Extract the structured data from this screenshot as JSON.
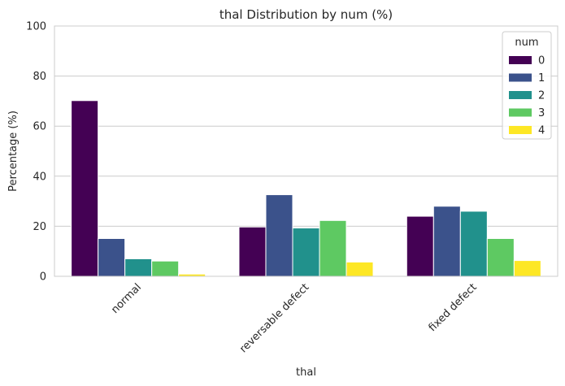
{
  "chart_data": {
    "type": "bar",
    "title": "thal Distribution by num (%)",
    "xlabel": "thal",
    "ylabel": "Percentage (%)",
    "ylim": [
      0,
      100
    ],
    "yticks": [
      "0",
      "20",
      "40",
      "60",
      "80",
      "100"
    ],
    "categories": [
      "normal",
      "reversable defect",
      "fixed defect"
    ],
    "legend": {
      "title": "num",
      "position": "top-right"
    },
    "grid": true,
    "series": [
      {
        "name": "0",
        "color": "#440154",
        "values": [
          70.2,
          19.7,
          24.0
        ]
      },
      {
        "name": "1",
        "color": "#3b528b",
        "values": [
          15.1,
          32.6,
          28.0
        ]
      },
      {
        "name": "2",
        "color": "#21918c",
        "values": [
          7.0,
          19.3,
          26.0
        ]
      },
      {
        "name": "3",
        "color": "#5ec962",
        "values": [
          6.1,
          22.3,
          15.1
        ]
      },
      {
        "name": "4",
        "color": "#fde725",
        "values": [
          0.9,
          5.7,
          6.3
        ]
      }
    ]
  }
}
